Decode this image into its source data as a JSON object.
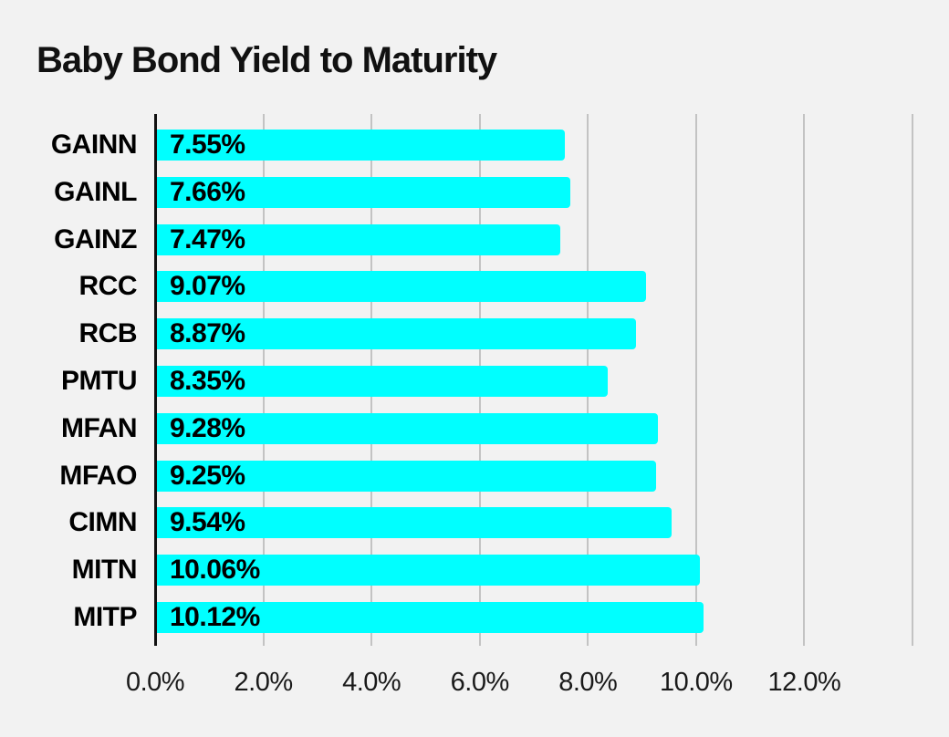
{
  "chart_data": {
    "type": "bar",
    "orientation": "horizontal",
    "title": "Baby Bond Yield to Maturity",
    "categories": [
      "GAINN",
      "GAINL",
      "GAINZ",
      "RCC",
      "RCB",
      "PMTU",
      "MFAN",
      "MFAO",
      "CIMN",
      "MITN",
      "MITP"
    ],
    "values": [
      7.55,
      7.66,
      7.47,
      9.07,
      8.87,
      8.35,
      9.28,
      9.25,
      9.54,
      10.06,
      10.12
    ],
    "value_labels": [
      "7.55%",
      "7.66%",
      "7.47%",
      "9.07%",
      "8.87%",
      "8.35%",
      "9.28%",
      "9.25%",
      "9.54%",
      "10.06%",
      "10.12%"
    ],
    "xlabel": "",
    "ylabel": "",
    "xlim": [
      0,
      14
    ],
    "x_tick_interval": 2,
    "x_tick_labels": [
      "0.0%",
      "2.0%",
      "4.0%",
      "6.0%",
      "8.0%",
      "10.0%",
      "12.0%"
    ],
    "gridlines_at": [
      2,
      4,
      6,
      8,
      10,
      12,
      14
    ],
    "grid": "vertical",
    "legend": false,
    "colors": {
      "bar": "#00ffff",
      "background": "#f2f2f2",
      "gridline": "#c3c3c3",
      "axis": "#111111",
      "text": "#000000"
    }
  }
}
